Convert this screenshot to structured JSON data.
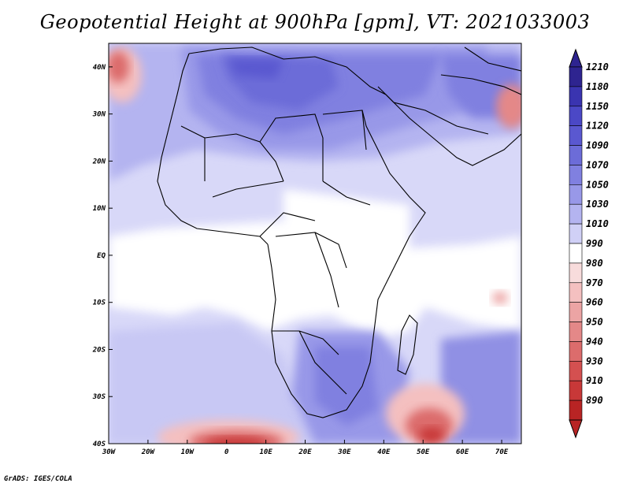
{
  "title": "Geopotential Height at 900hPa [gpm], VT: 2021033003",
  "credit": "GrADS: IGES/COLA",
  "axes": {
    "lon_ticks": [
      "30W",
      "20W",
      "10W",
      "0",
      "10E",
      "20E",
      "30E",
      "40E",
      "50E",
      "60E",
      "70E"
    ],
    "lat_ticks": [
      "40N",
      "30N",
      "20N",
      "10N",
      "EQ",
      "10S",
      "20S",
      "30S",
      "40S"
    ]
  },
  "colorbar": {
    "levels": [
      "1210",
      "1180",
      "1150",
      "1120",
      "1090",
      "1070",
      "1050",
      "1030",
      "1010",
      "990",
      "980",
      "970",
      "960",
      "950",
      "940",
      "930",
      "910",
      "890"
    ],
    "colors": [
      "#2e2490",
      "#3a34b0",
      "#4b48c6",
      "#5a58d0",
      "#6c6cd8",
      "#8080e0",
      "#9898e8",
      "#b4b4f0",
      "#d0d0f6",
      "#ffffff",
      "#f8dcdc",
      "#f4c0c0",
      "#eca4a4",
      "#e48888",
      "#dc6c6c",
      "#d45050",
      "#c83838",
      "#b82424"
    ]
  },
  "chart_data": {
    "type": "heatmap",
    "variable": "Geopotential Height at 900hPa",
    "units": "gpm",
    "valid_time": "2021033003",
    "lon_range": [
      -30,
      75
    ],
    "lat_range": [
      -40,
      45
    ],
    "contour_levels": [
      890,
      910,
      930,
      940,
      950,
      960,
      970,
      980,
      990,
      1010,
      1030,
      1050,
      1070,
      1090,
      1120,
      1150,
      1180,
      1210
    ]
  }
}
